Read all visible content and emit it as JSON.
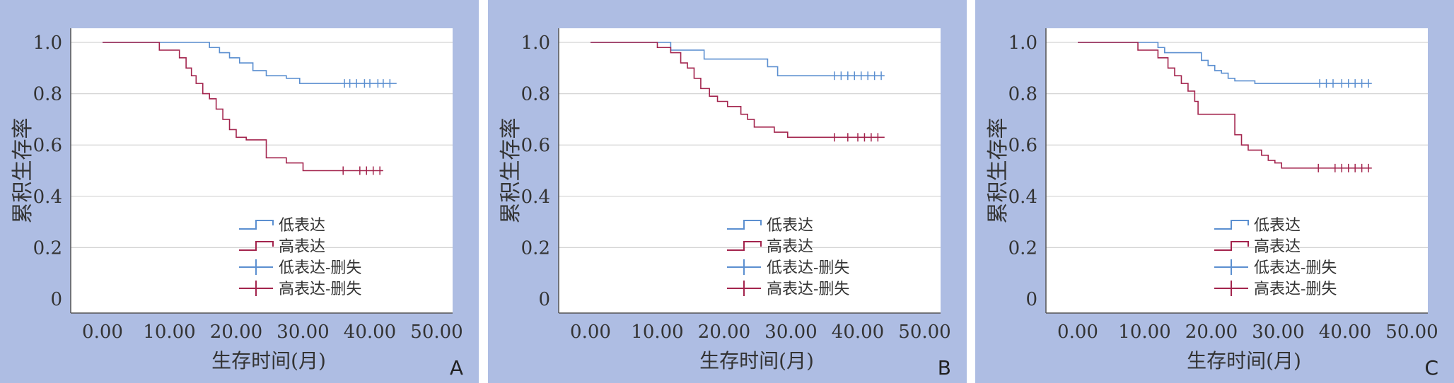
{
  "colors": {
    "background": "#aebde3",
    "plot_area": "#ffffff",
    "grid": "#d4d4d4",
    "axis": "#555555",
    "low": "#5b8fd0",
    "high": "#a3244d",
    "text": "#333333"
  },
  "chart_data": [
    {
      "type": "line",
      "panel_label": "A",
      "xlabel": "生存时间(月)",
      "ylabel": "累积生存率",
      "xlim": [
        0,
        50
      ],
      "ylim": [
        0,
        1
      ],
      "xticks": [
        "0.00",
        "10.00",
        "20.00",
        "30.00",
        "40.00",
        "50.00"
      ],
      "yticks": [
        "0",
        "0.2",
        "0.4",
        "0.6",
        "0.8",
        "1.0"
      ],
      "grid": true,
      "legend_position": "bottom-right",
      "legend": [
        "低表达",
        "高表达",
        "低表达-删失",
        "高表达-删失"
      ],
      "series": [
        {
          "name": "低表达",
          "style": "step",
          "x": [
            0,
            16.0,
            17.5,
            19.0,
            20.5,
            22.5,
            24.5,
            27.5,
            29.5,
            44.0
          ],
          "y": [
            1.0,
            0.98,
            0.96,
            0.94,
            0.92,
            0.89,
            0.87,
            0.86,
            0.84,
            0.84
          ],
          "censored_x": [
            36.2,
            37.0,
            38.0,
            39.2,
            40.0,
            41.2,
            42.0,
            43.0
          ]
        },
        {
          "name": "高表达",
          "style": "step",
          "x": [
            0,
            8.5,
            11.5,
            12.5,
            13.3,
            14.0,
            15.0,
            16.0,
            17.0,
            18.0,
            19.0,
            20.0,
            21.5,
            24.5,
            27.5,
            30.0,
            42.0
          ],
          "y": [
            1.0,
            0.97,
            0.94,
            0.9,
            0.87,
            0.84,
            0.8,
            0.78,
            0.74,
            0.7,
            0.66,
            0.63,
            0.62,
            0.55,
            0.53,
            0.5,
            0.5
          ],
          "censored_x": [
            36.0,
            38.5,
            39.5,
            40.5,
            41.5
          ]
        }
      ]
    },
    {
      "type": "line",
      "panel_label": "B",
      "xlabel": "生存时间(月)",
      "ylabel": "累积生存率",
      "xlim": [
        0,
        50
      ],
      "ylim": [
        0,
        1
      ],
      "xticks": [
        "0.00",
        "10.00",
        "20.00",
        "30.00",
        "40.00",
        "50.00"
      ],
      "yticks": [
        "0",
        "0.2",
        "0.4",
        "0.6",
        "0.8",
        "1.0"
      ],
      "grid": true,
      "legend_position": "bottom-right",
      "legend": [
        "低表达",
        "高表达",
        "低表达-删失",
        "高表达-删失"
      ],
      "series": [
        {
          "name": "低表达",
          "style": "step",
          "x": [
            0,
            12.0,
            17.0,
            26.5,
            28.0,
            44.0
          ],
          "y": [
            1.0,
            0.97,
            0.935,
            0.905,
            0.87,
            0.87
          ],
          "censored_x": [
            36.5,
            37.5,
            38.5,
            39.5,
            40.5,
            41.5,
            42.5,
            43.5
          ]
        },
        {
          "name": "高表达",
          "style": "step",
          "x": [
            0,
            10.0,
            12.0,
            13.5,
            14.5,
            15.5,
            16.5,
            17.8,
            19.0,
            20.5,
            22.5,
            23.5,
            24.5,
            27.5,
            29.5,
            44.0
          ],
          "y": [
            1.0,
            0.98,
            0.96,
            0.92,
            0.9,
            0.86,
            0.82,
            0.79,
            0.77,
            0.75,
            0.72,
            0.7,
            0.67,
            0.65,
            0.63,
            0.63
          ],
          "censored_x": [
            36.5,
            38.5,
            40.0,
            41.0,
            42.0,
            43.0
          ]
        }
      ]
    },
    {
      "type": "line",
      "panel_label": "C",
      "xlabel": "生存时间(月)",
      "ylabel": "累积生存率",
      "xlim": [
        0,
        50
      ],
      "ylim": [
        0,
        1
      ],
      "xticks": [
        "0.00",
        "10.00",
        "20.00",
        "30.00",
        "40.00",
        "50.00"
      ],
      "yticks": [
        "0",
        "0.2",
        "0.4",
        "0.6",
        "0.8",
        "1.0"
      ],
      "grid": true,
      "legend_position": "bottom-right",
      "legend": [
        "低表达",
        "高表达",
        "低表达-删失",
        "高表达-删失"
      ],
      "series": [
        {
          "name": "低表达",
          "style": "step",
          "x": [
            0,
            12.0,
            13.0,
            14.5,
            18.5,
            19.5,
            20.5,
            21.5,
            22.5,
            23.5,
            26.5,
            44.0
          ],
          "y": [
            1.0,
            0.98,
            0.96,
            0.96,
            0.93,
            0.91,
            0.89,
            0.88,
            0.86,
            0.85,
            0.84,
            0.84
          ],
          "censored_x": [
            36.2,
            37.2,
            38.2,
            39.5,
            40.5,
            41.5,
            42.5,
            43.5
          ]
        },
        {
          "name": "高表达",
          "style": "step",
          "x": [
            0,
            9.0,
            12.0,
            13.5,
            14.5,
            15.5,
            16.5,
            17.5,
            18.0,
            23.5,
            24.5,
            25.5,
            27.5,
            28.5,
            29.5,
            30.5,
            44.0
          ],
          "y": [
            1.0,
            0.97,
            0.94,
            0.9,
            0.87,
            0.84,
            0.81,
            0.77,
            0.72,
            0.64,
            0.6,
            0.58,
            0.56,
            0.54,
            0.53,
            0.51,
            0.51
          ],
          "censored_x": [
            36.0,
            38.5,
            39.5,
            40.5,
            41.5,
            42.5,
            43.5
          ]
        }
      ]
    }
  ]
}
